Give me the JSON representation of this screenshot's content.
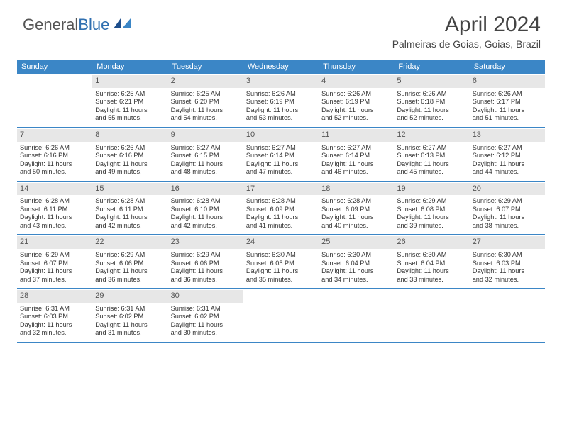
{
  "logo": {
    "text_gray": "General",
    "text_blue": "Blue"
  },
  "title": "April 2024",
  "location": "Palmeiras de Goias, Goias, Brazil",
  "colors": {
    "header_bg": "#3b86c6",
    "header_text": "#ffffff",
    "daynum_bg": "#e7e7e7",
    "border": "#3b86c6",
    "logo_gray": "#555555",
    "logo_blue": "#2f6fb0"
  },
  "weekdays": [
    "Sunday",
    "Monday",
    "Tuesday",
    "Wednesday",
    "Thursday",
    "Friday",
    "Saturday"
  ],
  "weeks": [
    [
      null,
      {
        "n": "1",
        "sr": "Sunrise: 6:25 AM",
        "ss": "Sunset: 6:21 PM",
        "d1": "Daylight: 11 hours",
        "d2": "and 55 minutes."
      },
      {
        "n": "2",
        "sr": "Sunrise: 6:25 AM",
        "ss": "Sunset: 6:20 PM",
        "d1": "Daylight: 11 hours",
        "d2": "and 54 minutes."
      },
      {
        "n": "3",
        "sr": "Sunrise: 6:26 AM",
        "ss": "Sunset: 6:19 PM",
        "d1": "Daylight: 11 hours",
        "d2": "and 53 minutes."
      },
      {
        "n": "4",
        "sr": "Sunrise: 6:26 AM",
        "ss": "Sunset: 6:19 PM",
        "d1": "Daylight: 11 hours",
        "d2": "and 52 minutes."
      },
      {
        "n": "5",
        "sr": "Sunrise: 6:26 AM",
        "ss": "Sunset: 6:18 PM",
        "d1": "Daylight: 11 hours",
        "d2": "and 52 minutes."
      },
      {
        "n": "6",
        "sr": "Sunrise: 6:26 AM",
        "ss": "Sunset: 6:17 PM",
        "d1": "Daylight: 11 hours",
        "d2": "and 51 minutes."
      }
    ],
    [
      {
        "n": "7",
        "sr": "Sunrise: 6:26 AM",
        "ss": "Sunset: 6:16 PM",
        "d1": "Daylight: 11 hours",
        "d2": "and 50 minutes."
      },
      {
        "n": "8",
        "sr": "Sunrise: 6:26 AM",
        "ss": "Sunset: 6:16 PM",
        "d1": "Daylight: 11 hours",
        "d2": "and 49 minutes."
      },
      {
        "n": "9",
        "sr": "Sunrise: 6:27 AM",
        "ss": "Sunset: 6:15 PM",
        "d1": "Daylight: 11 hours",
        "d2": "and 48 minutes."
      },
      {
        "n": "10",
        "sr": "Sunrise: 6:27 AM",
        "ss": "Sunset: 6:14 PM",
        "d1": "Daylight: 11 hours",
        "d2": "and 47 minutes."
      },
      {
        "n": "11",
        "sr": "Sunrise: 6:27 AM",
        "ss": "Sunset: 6:14 PM",
        "d1": "Daylight: 11 hours",
        "d2": "and 46 minutes."
      },
      {
        "n": "12",
        "sr": "Sunrise: 6:27 AM",
        "ss": "Sunset: 6:13 PM",
        "d1": "Daylight: 11 hours",
        "d2": "and 45 minutes."
      },
      {
        "n": "13",
        "sr": "Sunrise: 6:27 AM",
        "ss": "Sunset: 6:12 PM",
        "d1": "Daylight: 11 hours",
        "d2": "and 44 minutes."
      }
    ],
    [
      {
        "n": "14",
        "sr": "Sunrise: 6:28 AM",
        "ss": "Sunset: 6:11 PM",
        "d1": "Daylight: 11 hours",
        "d2": "and 43 minutes."
      },
      {
        "n": "15",
        "sr": "Sunrise: 6:28 AM",
        "ss": "Sunset: 6:11 PM",
        "d1": "Daylight: 11 hours",
        "d2": "and 42 minutes."
      },
      {
        "n": "16",
        "sr": "Sunrise: 6:28 AM",
        "ss": "Sunset: 6:10 PM",
        "d1": "Daylight: 11 hours",
        "d2": "and 42 minutes."
      },
      {
        "n": "17",
        "sr": "Sunrise: 6:28 AM",
        "ss": "Sunset: 6:09 PM",
        "d1": "Daylight: 11 hours",
        "d2": "and 41 minutes."
      },
      {
        "n": "18",
        "sr": "Sunrise: 6:28 AM",
        "ss": "Sunset: 6:09 PM",
        "d1": "Daylight: 11 hours",
        "d2": "and 40 minutes."
      },
      {
        "n": "19",
        "sr": "Sunrise: 6:29 AM",
        "ss": "Sunset: 6:08 PM",
        "d1": "Daylight: 11 hours",
        "d2": "and 39 minutes."
      },
      {
        "n": "20",
        "sr": "Sunrise: 6:29 AM",
        "ss": "Sunset: 6:07 PM",
        "d1": "Daylight: 11 hours",
        "d2": "and 38 minutes."
      }
    ],
    [
      {
        "n": "21",
        "sr": "Sunrise: 6:29 AM",
        "ss": "Sunset: 6:07 PM",
        "d1": "Daylight: 11 hours",
        "d2": "and 37 minutes."
      },
      {
        "n": "22",
        "sr": "Sunrise: 6:29 AM",
        "ss": "Sunset: 6:06 PM",
        "d1": "Daylight: 11 hours",
        "d2": "and 36 minutes."
      },
      {
        "n": "23",
        "sr": "Sunrise: 6:29 AM",
        "ss": "Sunset: 6:06 PM",
        "d1": "Daylight: 11 hours",
        "d2": "and 36 minutes."
      },
      {
        "n": "24",
        "sr": "Sunrise: 6:30 AM",
        "ss": "Sunset: 6:05 PM",
        "d1": "Daylight: 11 hours",
        "d2": "and 35 minutes."
      },
      {
        "n": "25",
        "sr": "Sunrise: 6:30 AM",
        "ss": "Sunset: 6:04 PM",
        "d1": "Daylight: 11 hours",
        "d2": "and 34 minutes."
      },
      {
        "n": "26",
        "sr": "Sunrise: 6:30 AM",
        "ss": "Sunset: 6:04 PM",
        "d1": "Daylight: 11 hours",
        "d2": "and 33 minutes."
      },
      {
        "n": "27",
        "sr": "Sunrise: 6:30 AM",
        "ss": "Sunset: 6:03 PM",
        "d1": "Daylight: 11 hours",
        "d2": "and 32 minutes."
      }
    ],
    [
      {
        "n": "28",
        "sr": "Sunrise: 6:31 AM",
        "ss": "Sunset: 6:03 PM",
        "d1": "Daylight: 11 hours",
        "d2": "and 32 minutes."
      },
      {
        "n": "29",
        "sr": "Sunrise: 6:31 AM",
        "ss": "Sunset: 6:02 PM",
        "d1": "Daylight: 11 hours",
        "d2": "and 31 minutes."
      },
      {
        "n": "30",
        "sr": "Sunrise: 6:31 AM",
        "ss": "Sunset: 6:02 PM",
        "d1": "Daylight: 11 hours",
        "d2": "and 30 minutes."
      },
      null,
      null,
      null,
      null
    ]
  ]
}
